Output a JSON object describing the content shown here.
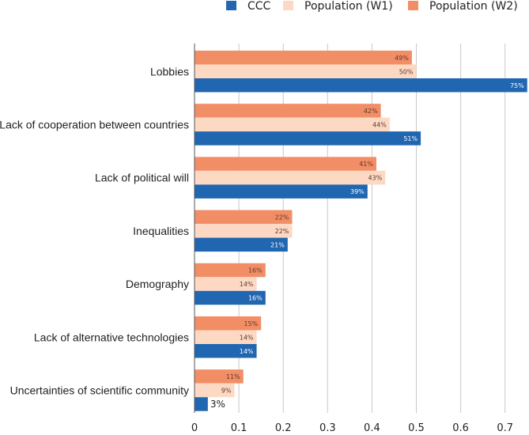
{
  "chart_data": {
    "type": "bar",
    "orientation": "horizontal",
    "categories": [
      "Lobbies",
      "Lack of cooperation between countries",
      "Lack of political will",
      "Inequalities",
      "Demography",
      "Lack of alternative technologies",
      "Uncertainties of scientific community"
    ],
    "series": [
      {
        "name": "Population (W2)",
        "color": "#f28e66",
        "values": [
          0.49,
          0.42,
          0.41,
          0.22,
          0.16,
          0.15,
          0.11
        ],
        "labels": [
          "49%",
          "42%",
          "41%",
          "22%",
          "16%",
          "15%",
          "11%"
        ]
      },
      {
        "name": "Population (W1)",
        "color": "#fdd9c4",
        "values": [
          0.5,
          0.44,
          0.43,
          0.22,
          0.14,
          0.14,
          0.09
        ],
        "labels": [
          "50%",
          "44%",
          "43%",
          "22%",
          "14%",
          "14%",
          "9%"
        ]
      },
      {
        "name": "CCC",
        "color": "#2166b0",
        "values": [
          0.75,
          0.51,
          0.39,
          0.21,
          0.16,
          0.14,
          0.03
        ],
        "labels": [
          "75%",
          "51%",
          "39%",
          "21%",
          "16%",
          "14%",
          "3%"
        ]
      }
    ],
    "legend_order": [
      "CCC",
      "Population (W1)",
      "Population (W2)"
    ],
    "xlim": [
      0,
      0.75
    ],
    "xticks": [
      "0",
      "0.1",
      "0.2",
      "0.3",
      "0.4",
      "0.5",
      "0.6",
      "0.7"
    ],
    "xtick_values": [
      0,
      0.1,
      0.2,
      0.3,
      0.4,
      0.5,
      0.6,
      0.7
    ],
    "grid": "vertical",
    "legend_position": "top-right",
    "title": "",
    "xlabel": "",
    "ylabel": ""
  }
}
